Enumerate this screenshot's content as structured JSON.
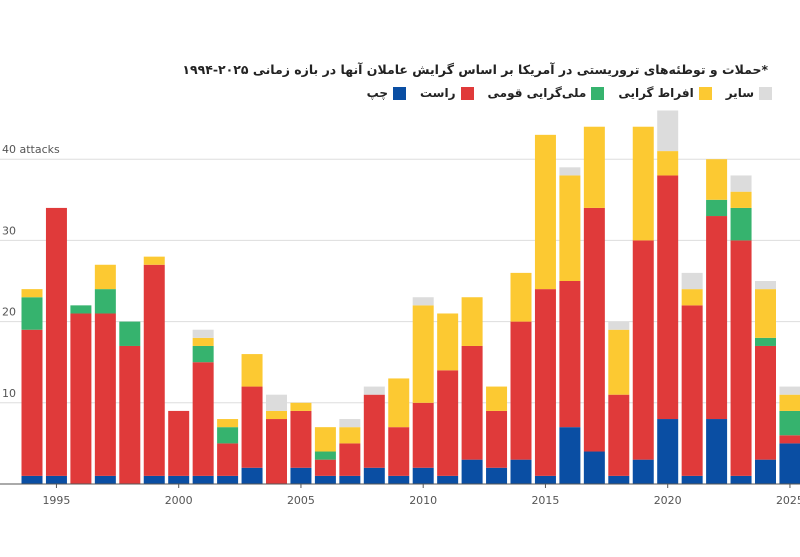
{
  "chart_data": {
    "type": "bar",
    "stacked": true,
    "title": "*حملات و توطئه‌های تروریستی در آمریکا بر اساس گرایش عاملان آنها در بازه زمانی  ۲۰۲۵-۱۹۹۴",
    "ylabel": "attacks",
    "ylim": [
      0,
      45
    ],
    "y_ticks": [
      {
        "value": 10,
        "label": "10"
      },
      {
        "value": 20,
        "label": "20"
      },
      {
        "value": 30,
        "label": "30"
      },
      {
        "value": 40,
        "label": "40 attacks"
      }
    ],
    "x_tick_labels": [
      "1995",
      "2000",
      "2005",
      "2010",
      "2015",
      "2020",
      "2025"
    ],
    "years": [
      1994,
      1995,
      1996,
      1997,
      1998,
      1999,
      2000,
      2001,
      2002,
      2003,
      2004,
      2005,
      2006,
      2007,
      2008,
      2009,
      2010,
      2011,
      2012,
      2013,
      2014,
      2015,
      2016,
      2017,
      2018,
      2019,
      2020,
      2021,
      2022,
      2023,
      2024,
      2025
    ],
    "series": [
      {
        "key": "left",
        "name": "چپ",
        "color": "#0a4ea3",
        "values": [
          1,
          1,
          0,
          1,
          0,
          1,
          1,
          1,
          1,
          2,
          0,
          2,
          1,
          1,
          2,
          1,
          2,
          1,
          3,
          2,
          3,
          1,
          7,
          4,
          1,
          3,
          8,
          1,
          8,
          1,
          3,
          5
        ]
      },
      {
        "key": "right",
        "name": "راست",
        "color": "#e03a3a",
        "values": [
          18,
          33,
          21,
          20,
          17,
          26,
          8,
          14,
          4,
          10,
          8,
          7,
          2,
          4,
          9,
          6,
          8,
          13,
          14,
          7,
          17,
          23,
          18,
          30,
          10,
          27,
          30,
          21,
          25,
          29,
          14,
          1
        ]
      },
      {
        "key": "nat",
        "name": "ملی‌گرایی قومی",
        "color": "#36b36e",
        "values": [
          4,
          0,
          1,
          3,
          3,
          0,
          0,
          2,
          2,
          0,
          0,
          0,
          1,
          0,
          0,
          0,
          0,
          0,
          0,
          0,
          0,
          0,
          0,
          0,
          0,
          0,
          0,
          0,
          2,
          4,
          1,
          3
        ]
      },
      {
        "key": "ext",
        "name": "افراط گرایی",
        "color": "#fcc932",
        "values": [
          1,
          0,
          0,
          3,
          0,
          1,
          0,
          1,
          1,
          4,
          1,
          1,
          3,
          2,
          0,
          6,
          12,
          7,
          6,
          3,
          6,
          19,
          13,
          10,
          8,
          14,
          3,
          2,
          5,
          2,
          6,
          2
        ]
      },
      {
        "key": "other",
        "name": "سایر",
        "color": "#dcdcdc",
        "values": [
          0,
          0,
          0,
          0,
          0,
          0,
          0,
          1,
          0,
          0,
          2,
          0,
          0,
          1,
          1,
          0,
          1,
          0,
          0,
          0,
          0,
          0,
          1,
          0,
          1,
          0,
          5,
          2,
          0,
          2,
          1,
          1
        ]
      }
    ],
    "legend_order": [
      "other",
      "ext",
      "nat",
      "right",
      "left"
    ],
    "legend_position": "top-right"
  }
}
